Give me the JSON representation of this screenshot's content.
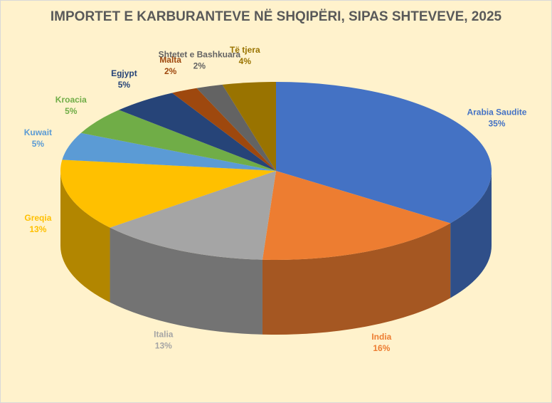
{
  "chart_data": {
    "type": "pie",
    "title": "IMPORTET E KARBURANTEVE NË SHQIPËRI, SIPAS SHTEVEVE, 2025",
    "categories": [
      "Arabia Saudite",
      "India",
      "Italia",
      "Greqia",
      "Kuwait",
      "Kroacia",
      "Egjypt",
      "Malta",
      "Shtetet e Bashkuara",
      "Të tjera"
    ],
    "values": [
      35,
      16,
      13,
      13,
      5,
      5,
      5,
      2,
      2,
      4
    ],
    "value_labels": [
      "35%",
      "16%",
      "13%",
      "13%",
      "5%",
      "5%",
      "5%",
      "2%",
      "2%",
      "4%"
    ],
    "colors": [
      "#4472c4",
      "#ed7d31",
      "#a5a5a5",
      "#ffc000",
      "#5b9bd5",
      "#70ad47",
      "#264478",
      "#9e480e",
      "#636363",
      "#997300"
    ]
  }
}
